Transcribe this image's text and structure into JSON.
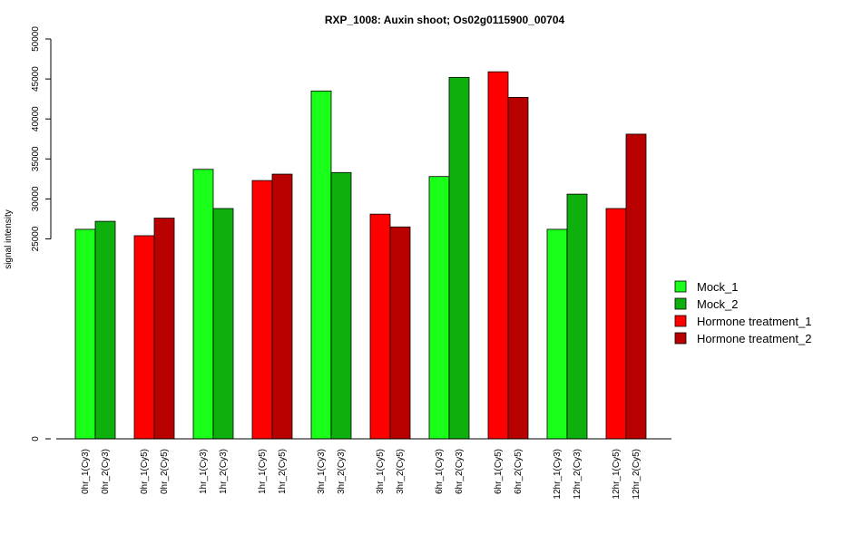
{
  "chart_data": {
    "type": "bar",
    "title": "RXP_1008: Auxin shoot; Os02g0115900_00704",
    "ylabel": "signal intensity",
    "xlabel": "",
    "ylim": [
      0,
      50000
    ],
    "y_ticks": [
      0,
      25000,
      30000,
      35000,
      40000,
      45000,
      50000
    ],
    "colors": {
      "Mock_1": "#19FF19",
      "Mock_2": "#0DB00D",
      "Hormone treatment_1": "#FF0000",
      "Hormone treatment_2": "#B80000"
    },
    "legend": {
      "position": "right",
      "entries": [
        "Mock_1",
        "Mock_2",
        "Hormone treatment_1",
        "Hormone treatment_2"
      ]
    },
    "groups": [
      {
        "series": [
          "Mock_1",
          "Mock_2"
        ],
        "labels": [
          "0hr_1(Cy3)",
          "0hr_2(Cy3)"
        ],
        "values": [
          26200,
          27200
        ]
      },
      {
        "series": [
          "Hormone treatment_1",
          "Hormone treatment_2"
        ],
        "labels": [
          "0hr_1(Cy5)",
          "0hr_2(Cy5)"
        ],
        "values": [
          25400,
          27600
        ]
      },
      {
        "series": [
          "Mock_1",
          "Mock_2"
        ],
        "labels": [
          "1hr_1(Cy3)",
          "1hr_2(Cy3)"
        ],
        "values": [
          33700,
          28800
        ]
      },
      {
        "series": [
          "Hormone treatment_1",
          "Hormone treatment_2"
        ],
        "labels": [
          "1hr_1(Cy5)",
          "1hr_2(Cy5)"
        ],
        "values": [
          32300,
          33100
        ]
      },
      {
        "series": [
          "Mock_1",
          "Mock_2"
        ],
        "labels": [
          "3hr_1(Cy3)",
          "3hr_2(Cy3)"
        ],
        "values": [
          43500,
          33300
        ]
      },
      {
        "series": [
          "Hormone treatment_1",
          "Hormone treatment_2"
        ],
        "labels": [
          "3hr_1(Cy5)",
          "3hr_2(Cy5)"
        ],
        "values": [
          28100,
          26500
        ]
      },
      {
        "series": [
          "Mock_1",
          "Mock_2"
        ],
        "labels": [
          "6hr_1(Cy3)",
          "6hr_2(Cy3)"
        ],
        "values": [
          32800,
          45200
        ]
      },
      {
        "series": [
          "Hormone treatment_1",
          "Hormone treatment_2"
        ],
        "labels": [
          "6hr_1(Cy5)",
          "6hr_2(Cy5)"
        ],
        "values": [
          45900,
          42700
        ]
      },
      {
        "series": [
          "Mock_1",
          "Mock_2"
        ],
        "labels": [
          "12hr_1(Cy3)",
          "12hr_2(Cy3)"
        ],
        "values": [
          26200,
          30600
        ]
      },
      {
        "series": [
          "Hormone treatment_1",
          "Hormone treatment_2"
        ],
        "labels": [
          "12hr_1(Cy5)",
          "12hr_2(Cy5)"
        ],
        "values": [
          28800,
          38100
        ]
      }
    ]
  }
}
